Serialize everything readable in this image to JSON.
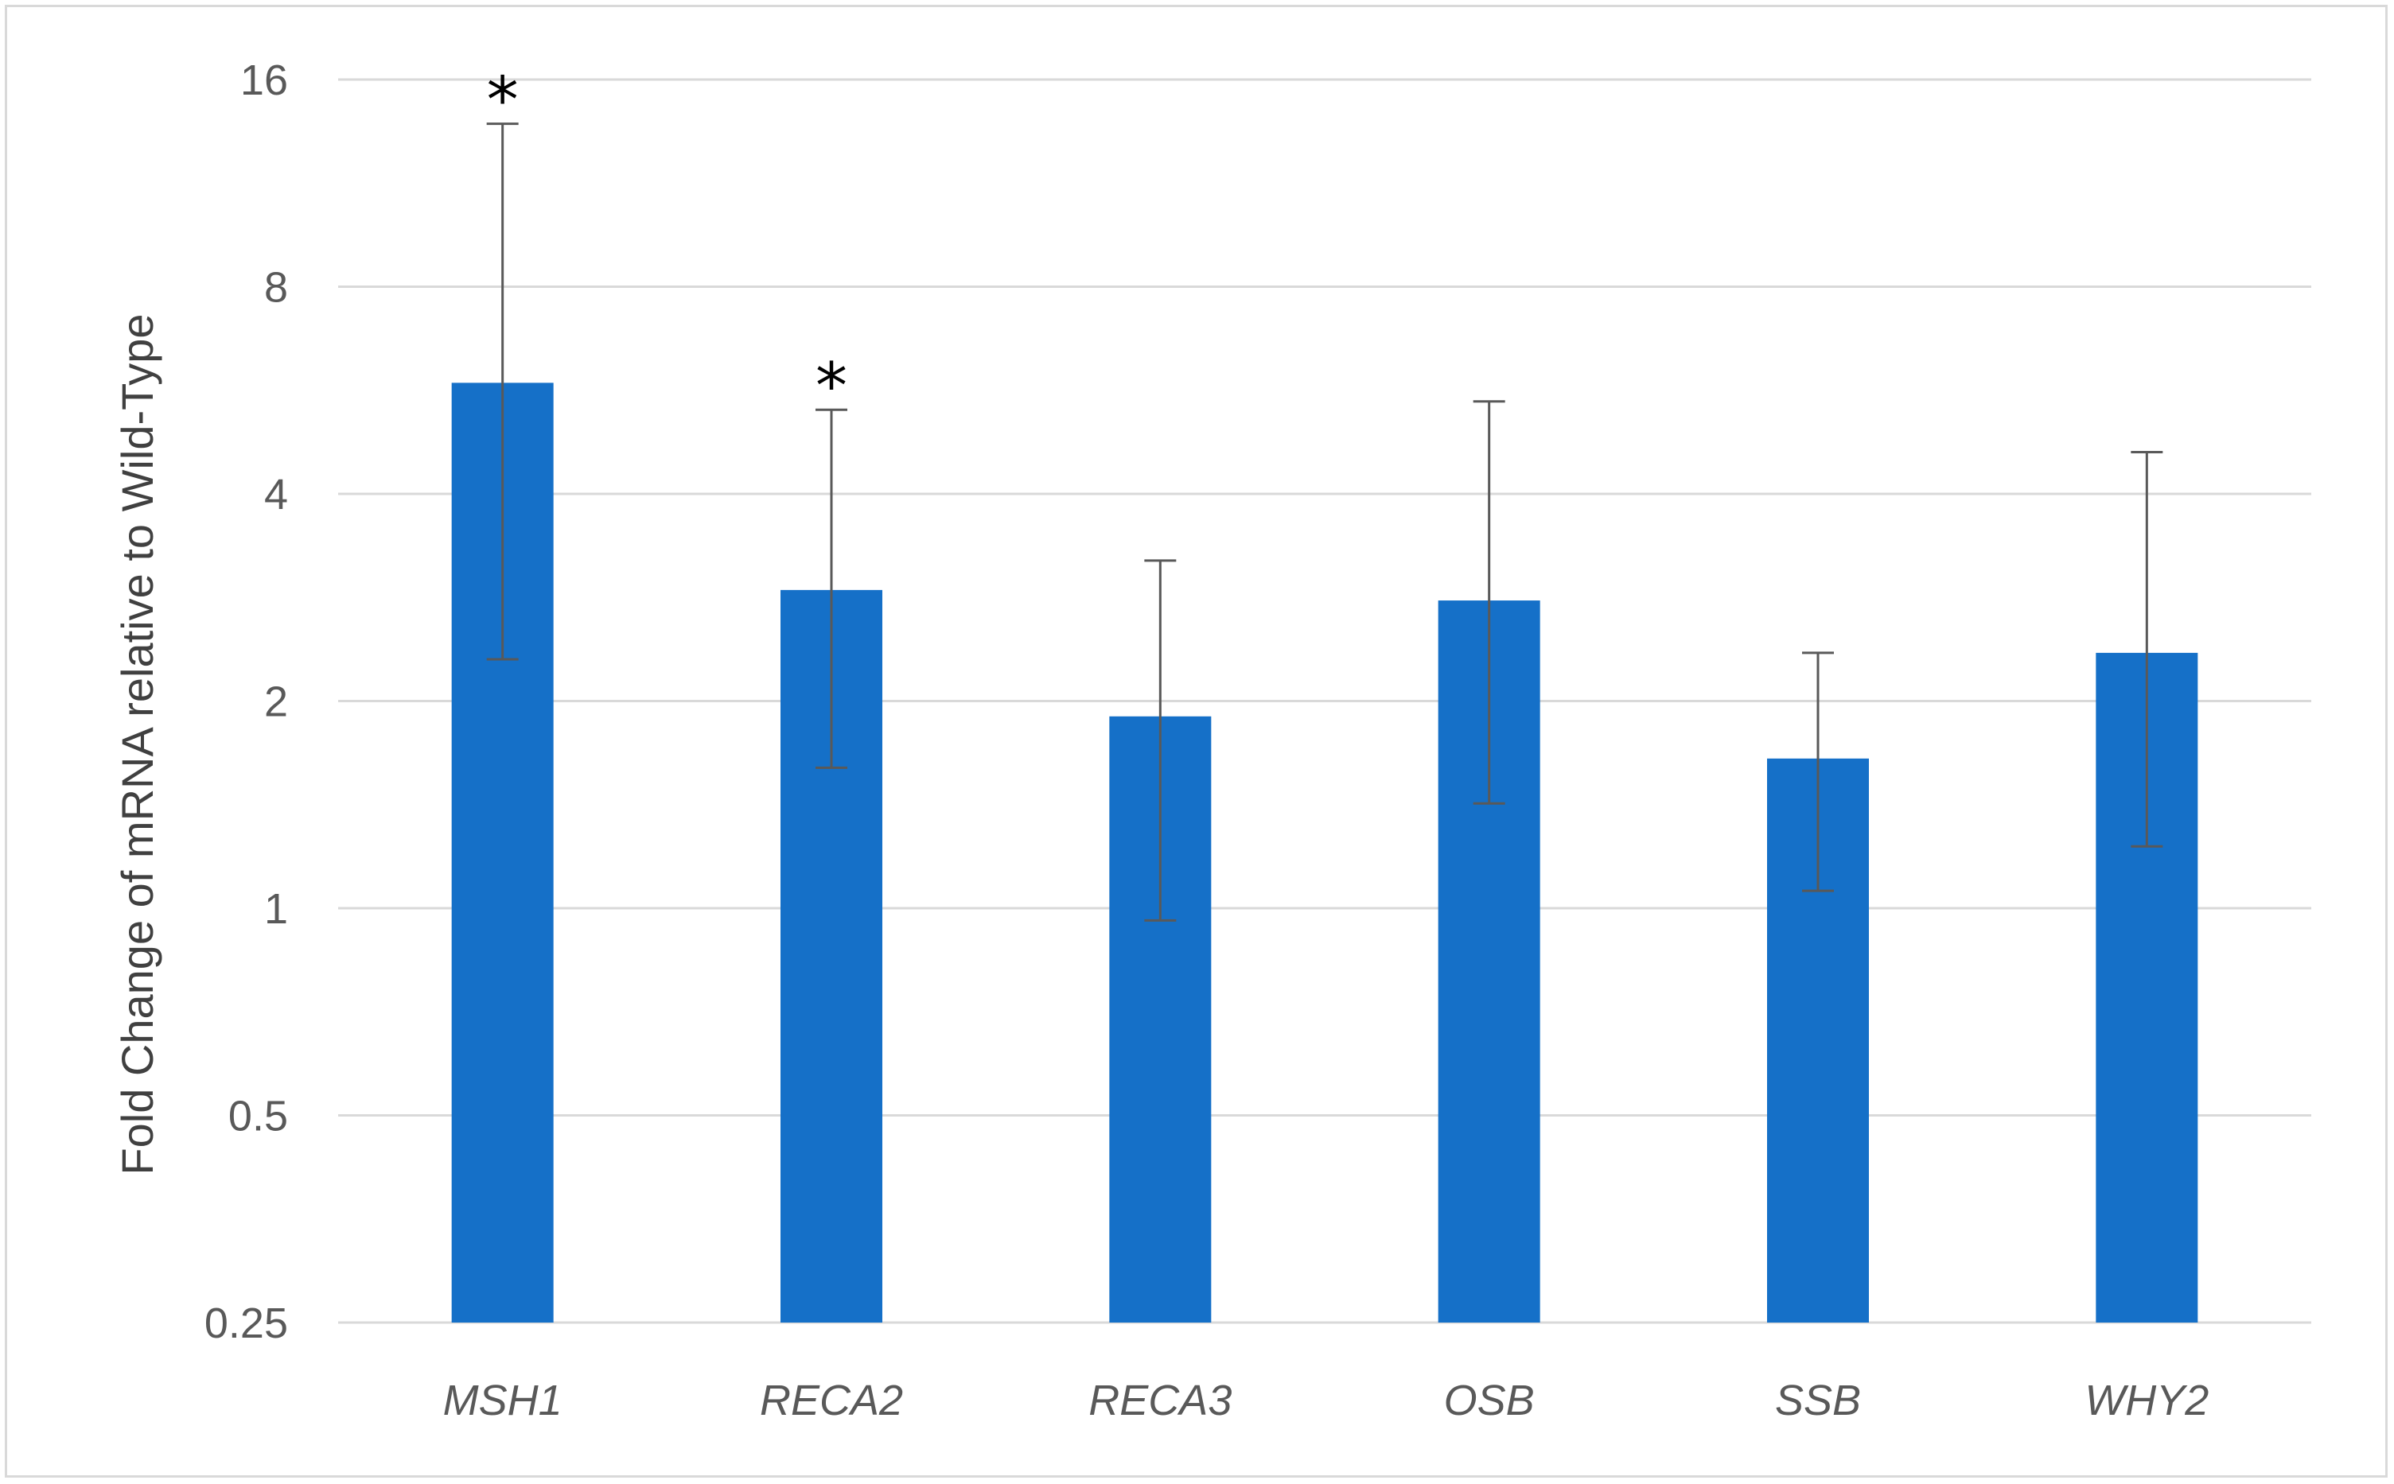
{
  "chart_data": {
    "type": "bar",
    "title": "",
    "xlabel": "",
    "ylabel": "Fold Change of mRNA relative to Wild-Type",
    "y_scale": "log2",
    "ylim": [
      0.25,
      16
    ],
    "y_ticks": [
      0.25,
      0.5,
      1,
      2,
      4,
      8,
      16
    ],
    "y_tick_labels": [
      "0.25",
      "0.5",
      "1",
      "2",
      "4",
      "8",
      "16"
    ],
    "grid": true,
    "legend": "none",
    "categories": [
      "MSH1",
      "RECA2",
      "RECA3",
      "OSB",
      "SSB",
      "WHY2"
    ],
    "values": [
      5.8,
      2.9,
      1.9,
      2.8,
      1.65,
      2.35
    ],
    "error_low": [
      2.3,
      1.6,
      0.96,
      1.42,
      1.06,
      1.23
    ],
    "error_high": [
      13.8,
      5.3,
      3.2,
      5.45,
      2.35,
      4.6
    ],
    "significance": [
      "*",
      "*",
      "",
      "",
      "",
      ""
    ],
    "bar_color": "#1570C8",
    "error_bar_color": "#595959",
    "grid_color": "#d9d9d9"
  }
}
